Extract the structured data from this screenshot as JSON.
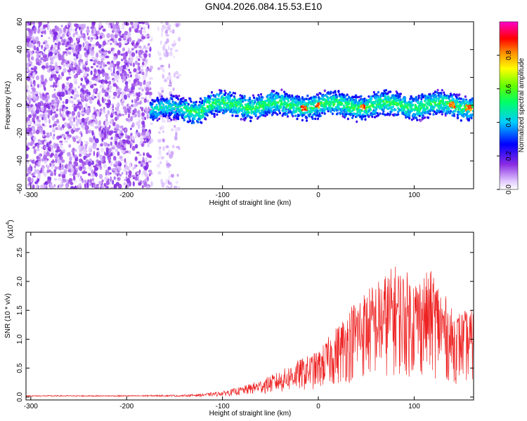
{
  "figure_title": "GN04.2026.084.15.53.E10",
  "chart_data": [
    {
      "type": "heatmap",
      "title": "GN04.2026.084.15.53.E10",
      "xlabel": "Height of straight line (km)",
      "ylabel": "Frequency (Hz)",
      "xlim": [
        -305,
        162
      ],
      "ylim": [
        -60,
        60
      ],
      "xticks": [
        -300,
        -200,
        -100,
        0,
        100
      ],
      "yticks": [
        -60,
        -40,
        -20,
        0,
        20,
        40,
        60
      ],
      "colorbar": {
        "label": "Normalized spectral amplitude",
        "range": [
          0,
          1
        ],
        "ticks": [
          0.0,
          0.2,
          0.4,
          0.6,
          0.8
        ],
        "colormap": [
          "#ffffff",
          "#8a2be2",
          "#0000ff",
          "#00ffff",
          "#00ff00",
          "#ffff00",
          "#ff0000",
          "#ff00ff"
        ]
      },
      "description_points": {
        "noise_region_km": [
          -305,
          -145
        ],
        "noise_gap_km": [
          -173,
          -167
        ],
        "signal_start_km": -175,
        "signal_center_hz": 0,
        "signal_halfwidth_hz": 5,
        "peak_heights_km": [
          -15,
          0,
          47,
          140,
          157
        ]
      }
    },
    {
      "type": "line",
      "xlabel": "Height of straight line (km)",
      "ylabel": "SNR (10 * v/v)",
      "yscale_label": "(x10",
      "yscale_exp": "4",
      "yscale_close": ")",
      "xlim": [
        -305,
        162
      ],
      "ylim": [
        -0.05,
        2.85
      ],
      "xticks": [
        -300,
        -200,
        -100,
        0,
        100
      ],
      "yticks": [
        0.0,
        0.5,
        1.0,
        1.5,
        2.0,
        2.5
      ],
      "color": "#ee2222",
      "envelope": {
        "x": [
          -305,
          -200,
          -150,
          -120,
          -100,
          -80,
          -60,
          -40,
          -20,
          0,
          20,
          40,
          60,
          80,
          100,
          120,
          140,
          162
        ],
        "y": [
          0.02,
          0.02,
          0.03,
          0.06,
          0.1,
          0.18,
          0.3,
          0.45,
          0.65,
          0.8,
          1.25,
          1.75,
          2.0,
          2.3,
          2.1,
          2.2,
          1.5,
          1.5
        ]
      }
    }
  ]
}
